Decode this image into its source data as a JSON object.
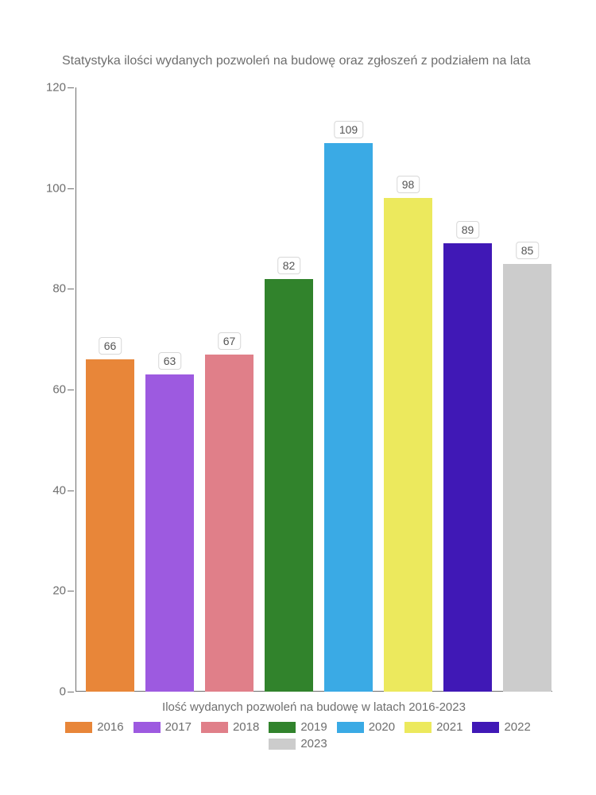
{
  "title": "Statystyka ilości wydanych pozwoleń na budowę oraz zgłoszeń z podziałem na lata",
  "x_axis_label": "Ilość wydanych pozwoleń na budowę w latach 2016-2023",
  "chart": {
    "type": "bar",
    "ylim": [
      0,
      120
    ],
    "ytick_step": 20,
    "yticks": [
      0,
      20,
      40,
      60,
      80,
      100,
      120
    ],
    "background_color": "#ffffff",
    "axis_color": "#6e6e6e",
    "label_fontsize": 15,
    "title_fontsize": 16,
    "bar_width_ratio": 0.82,
    "bars": [
      {
        "year": "2016",
        "value": 66,
        "color": "#e88639"
      },
      {
        "year": "2017",
        "value": 63,
        "color": "#9d5ae0"
      },
      {
        "year": "2018",
        "value": 67,
        "color": "#e07f89"
      },
      {
        "year": "2019",
        "value": 82,
        "color": "#31832c"
      },
      {
        "year": "2020",
        "value": 109,
        "color": "#3aaae5"
      },
      {
        "year": "2021",
        "value": 98,
        "color": "#ece95d"
      },
      {
        "year": "2022",
        "value": 89,
        "color": "#4018b6"
      },
      {
        "year": "2023",
        "value": 85,
        "color": "#cccccc"
      }
    ]
  },
  "legend": [
    {
      "label": "2016",
      "color": "#e88639"
    },
    {
      "label": "2017",
      "color": "#9d5ae0"
    },
    {
      "label": "2018",
      "color": "#e07f89"
    },
    {
      "label": "2019",
      "color": "#31832c"
    },
    {
      "label": "2020",
      "color": "#3aaae5"
    },
    {
      "label": "2021",
      "color": "#ece95d"
    },
    {
      "label": "2022",
      "color": "#4018b6"
    },
    {
      "label": "2023",
      "color": "#cccccc"
    }
  ]
}
